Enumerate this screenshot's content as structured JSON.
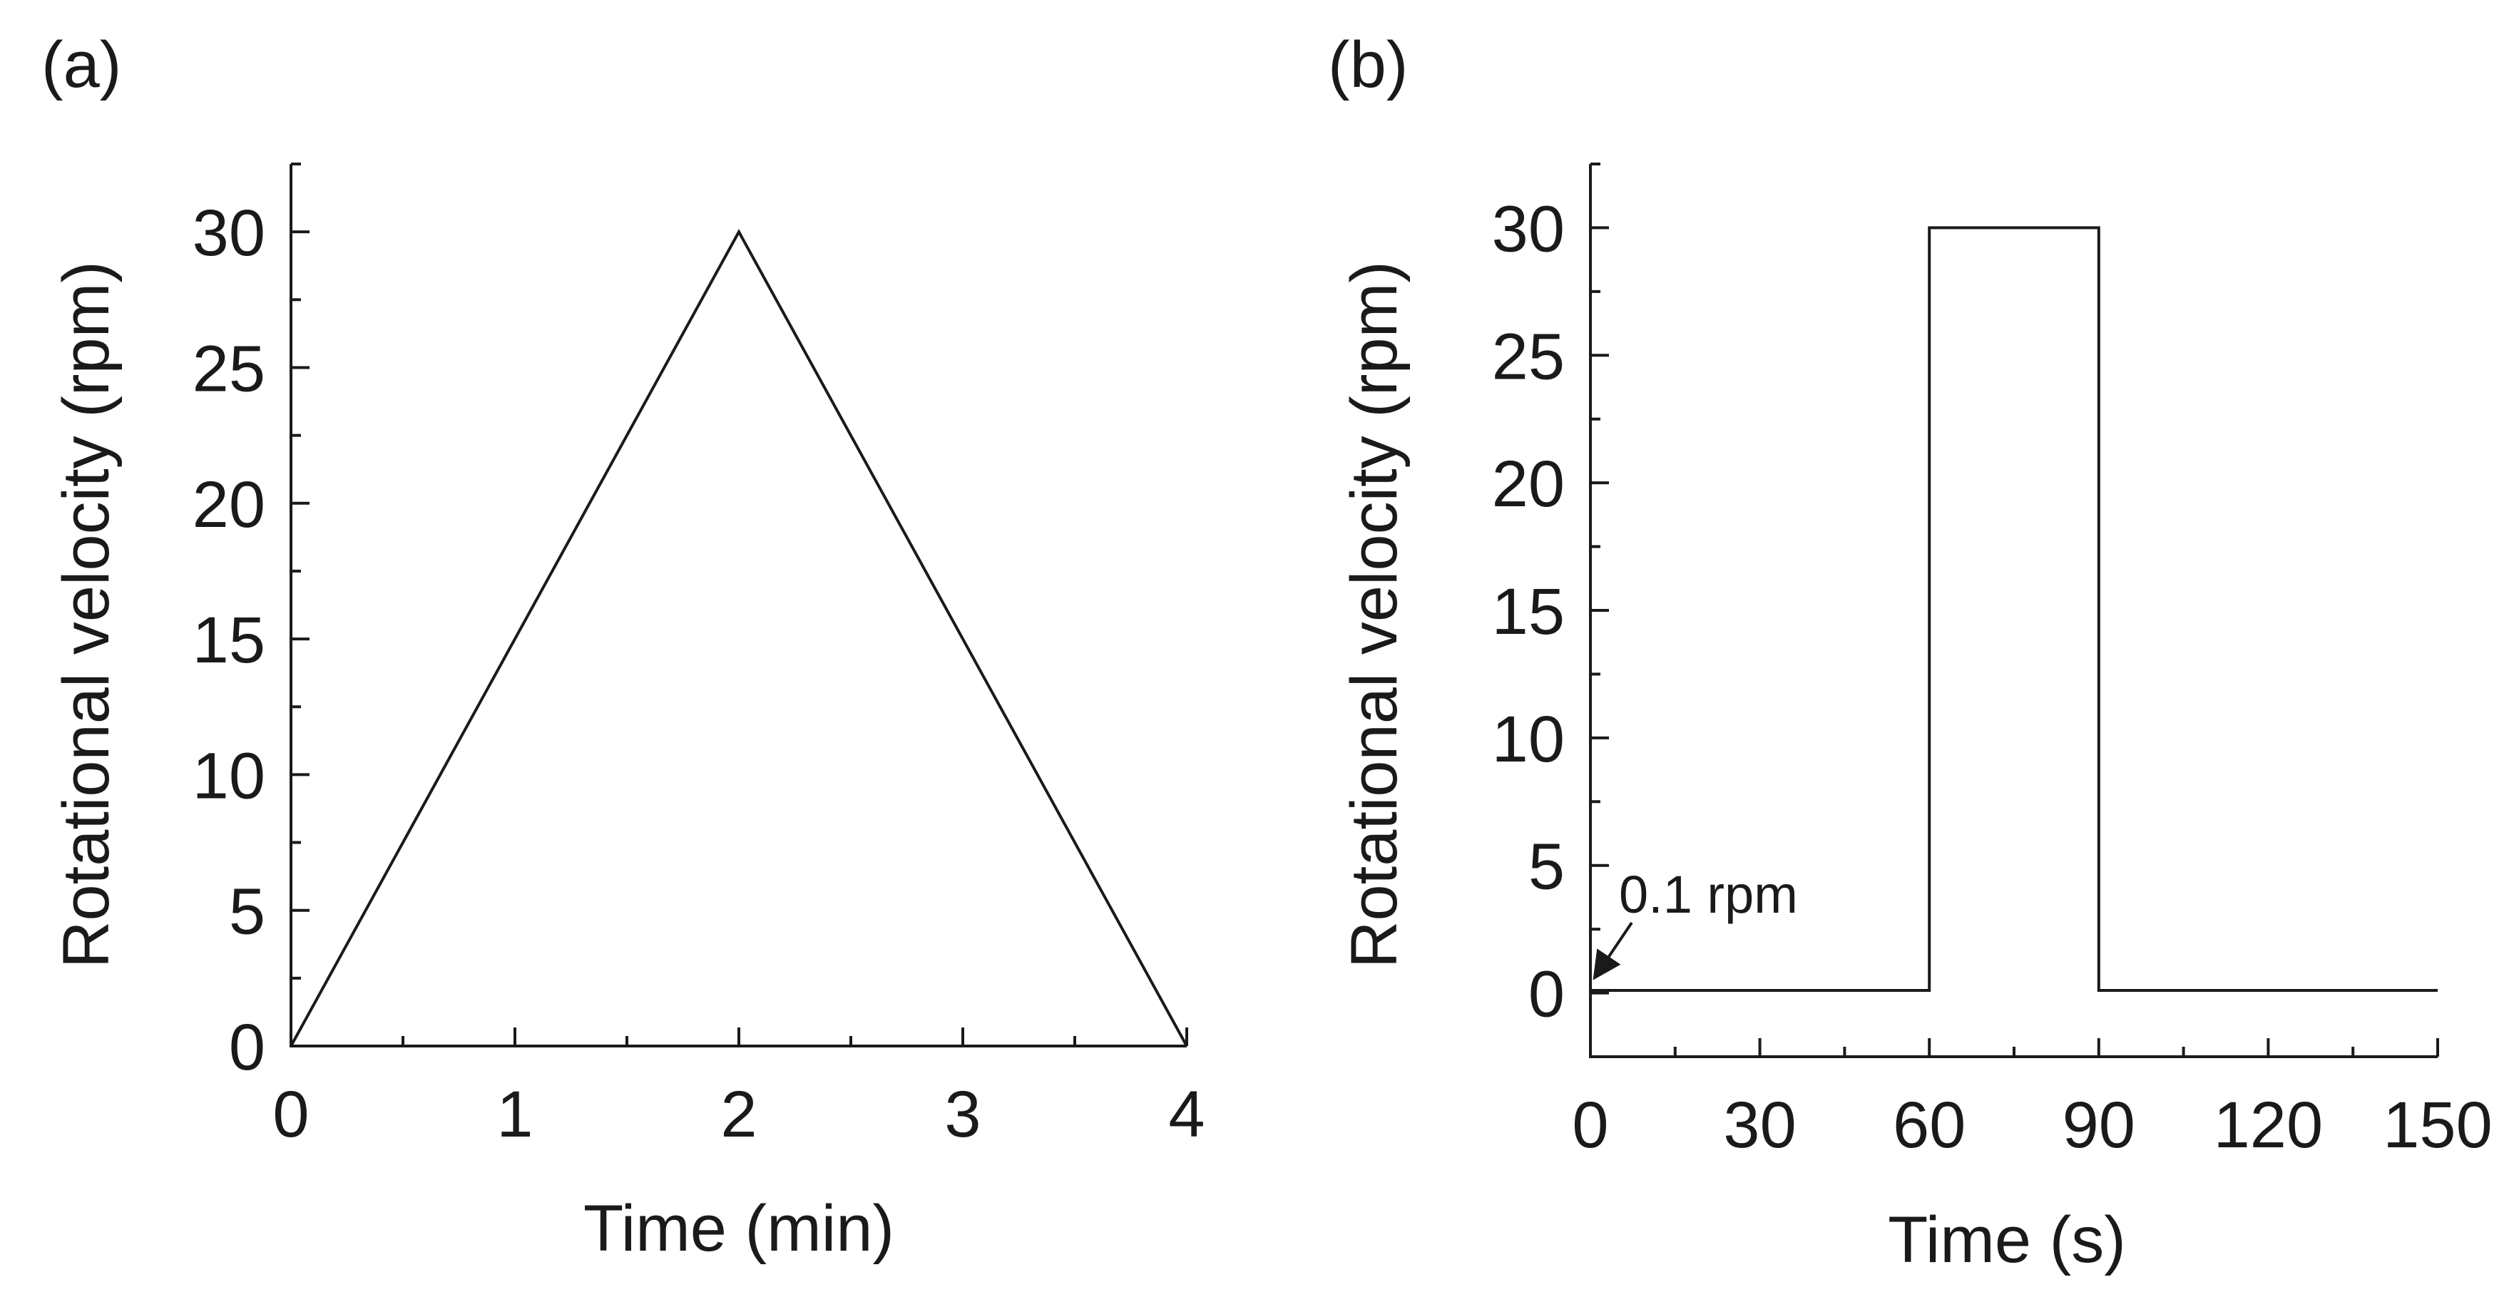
{
  "chart_data": [
    {
      "type": "line",
      "panel_label": "(a)",
      "xlabel": "Time (min)",
      "ylabel": "Rotational velocity (rpm)",
      "xlim": [
        0,
        4
      ],
      "ylim": [
        0,
        32.5
      ],
      "xticks": [
        0,
        1,
        2,
        3,
        4
      ],
      "yticks": [
        0,
        5,
        10,
        15,
        20,
        25,
        30
      ],
      "x_minor_step": 0.5,
      "y_minor_step": 2.5,
      "grid": false,
      "series": [
        {
          "x": [
            0,
            2,
            4
          ],
          "y": [
            0,
            30,
            0
          ]
        }
      ],
      "color": "#1a1a1a"
    },
    {
      "type": "line",
      "panel_label": "(b)",
      "xlabel": "Time (s)",
      "ylabel": "Rotational velocity (rpm)",
      "xlim": [
        0,
        150
      ],
      "ylim": [
        -2.5,
        32.5
      ],
      "xticks": [
        0,
        30,
        60,
        90,
        120,
        150
      ],
      "yticks": [
        0,
        5,
        10,
        15,
        20,
        25,
        30
      ],
      "x_minor_step": 15,
      "y_minor_step": 2.5,
      "grid": false,
      "series": [
        {
          "x": [
            0,
            60,
            60,
            90,
            90,
            150
          ],
          "y": [
            0.1,
            0.1,
            30,
            30,
            0.1,
            0.1
          ]
        }
      ],
      "annotation": {
        "text": "0.1 rpm",
        "x": 0,
        "y": 0.1
      },
      "color": "#1a1a1a"
    }
  ]
}
